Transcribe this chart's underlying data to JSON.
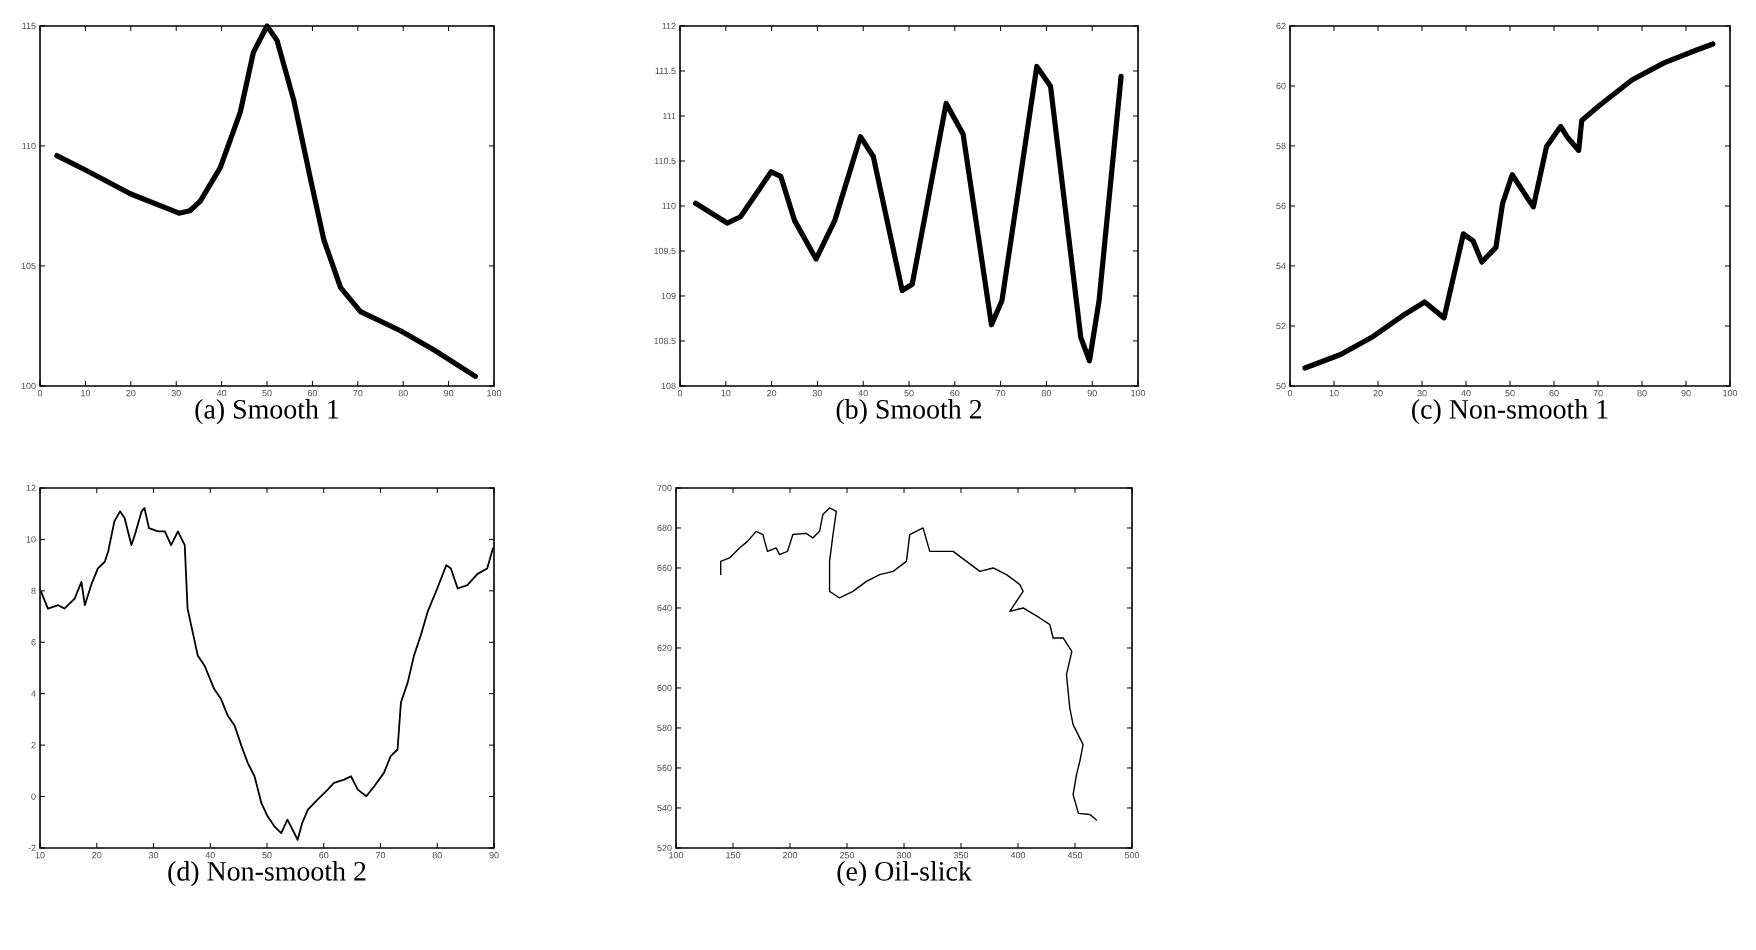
{
  "chart_data": [
    {
      "type": "line",
      "title": "(a) Smooth 1",
      "xlim": [
        0,
        100
      ],
      "ylim": [
        100,
        115
      ],
      "xticks": [
        0,
        10,
        20,
        30,
        40,
        50,
        60,
        70,
        80,
        90,
        100
      ],
      "yticks": [
        100,
        105,
        110,
        115
      ],
      "series": [
        {
          "color": "#000000",
          "x": [
            3.7,
            10,
            20,
            28,
            30.6,
            33,
            35.3,
            39.7,
            44.1,
            47,
            50,
            52.2,
            55.9,
            59.6,
            62.5,
            66.2,
            70.6,
            79.4,
            86.8,
            95.9
          ],
          "values": [
            109.6,
            109.0,
            108.0,
            107.4,
            107.2,
            107.3,
            107.7,
            109.1,
            111.4,
            113.9,
            115,
            114.4,
            111.9,
            108.6,
            106.1,
            104.1,
            103.1,
            102.3,
            101.5,
            100.4
          ]
        }
      ]
    },
    {
      "type": "line",
      "title": "(b) Smooth 2",
      "xlim": [
        0,
        100
      ],
      "ylim": [
        108,
        112
      ],
      "xticks": [
        0,
        10,
        20,
        30,
        40,
        50,
        60,
        70,
        80,
        90,
        100
      ],
      "yticks": [
        108,
        108.5,
        109,
        109.5,
        110,
        110.5,
        111,
        111.5,
        112
      ],
      "series": [
        {
          "color": "#000000",
          "x": [
            3.4,
            10.3,
            13.2,
            19.9,
            22,
            25,
            29.7,
            33.8,
            39.4,
            42.2,
            48.5,
            50.7,
            58.1,
            61.8,
            68,
            70.3,
            77.9,
            80.9,
            87.5,
            89.4,
            91.5,
            96.3
          ],
          "values": [
            110.03,
            109.81,
            109.88,
            110.38,
            110.33,
            109.84,
            109.41,
            109.84,
            110.77,
            110.55,
            109.06,
            109.13,
            111.14,
            110.8,
            108.68,
            108.95,
            111.55,
            111.33,
            108.54,
            108.28,
            108.95,
            111.44
          ]
        }
      ]
    },
    {
      "type": "line",
      "title": "(c) Non-smooth 1",
      "xlim": [
        0,
        100
      ],
      "ylim": [
        50,
        62
      ],
      "xticks": [
        0,
        10,
        20,
        30,
        40,
        50,
        60,
        70,
        80,
        90,
        100
      ],
      "yticks": [
        50,
        52,
        54,
        56,
        58,
        60,
        62
      ],
      "series": [
        {
          "color": "#000000",
          "x": [
            3.4,
            11.5,
            18.9,
            26.2,
            30.6,
            35,
            39.4,
            41.6,
            43.6,
            46.8,
            48.3,
            50.5,
            55.3,
            58.3,
            61.5,
            63,
            65.6,
            66.3,
            70.3,
            77.7,
            85,
            92.4,
            96.1
          ],
          "values": [
            50.6,
            51.05,
            51.65,
            52.4,
            52.8,
            52.27,
            55.07,
            54.84,
            54.13,
            54.62,
            56.08,
            57.04,
            55.97,
            57.98,
            58.65,
            58.3,
            57.85,
            58.85,
            59.35,
            60.2,
            60.77,
            61.2,
            61.4
          ]
        }
      ]
    },
    {
      "type": "line",
      "title": "(d) Non-smooth 2",
      "xlim": [
        10,
        90
      ],
      "ylim": [
        -2,
        12
      ],
      "xticks": [
        10,
        20,
        30,
        40,
        50,
        60,
        70,
        80,
        90
      ],
      "yticks": [
        -2,
        0,
        2,
        4,
        6,
        8,
        10,
        12
      ],
      "series": [
        {
          "color": "#000000",
          "x": [
            10.2,
            11.4,
            13.2,
            14.3,
            16.1,
            17.3,
            17.9,
            19,
            20.2,
            21.4,
            22,
            23.1,
            24.1,
            24.9,
            26.1,
            26.7,
            27.9,
            28.4,
            29.2,
            30.8,
            32,
            33.1,
            34.3,
            35.5,
            36,
            37.8,
            39,
            40.7,
            41.9,
            43.1,
            44.3,
            45.5,
            46.6,
            47.8,
            49,
            50.1,
            51.3,
            52.5,
            53.6,
            55.4,
            56.2,
            57.2,
            58.9,
            60.7,
            61.8,
            63.6,
            64.8,
            66,
            67.5,
            68.9,
            70.6,
            71.8,
            73,
            73.6,
            74.8,
            75.9,
            77.1,
            78.3,
            80,
            81.6,
            82.4,
            83.6,
            85.3,
            87.1,
            88.8,
            89.8
          ],
          "values": [
            7.96,
            7.31,
            7.44,
            7.31,
            7.7,
            8.35,
            7.44,
            8.22,
            8.87,
            9.13,
            9.52,
            10.7,
            11.09,
            10.83,
            9.78,
            10.17,
            11.09,
            11.22,
            10.44,
            10.31,
            10.31,
            9.78,
            10.31,
            9.78,
            7.31,
            5.48,
            5.09,
            4.18,
            3.79,
            3.14,
            2.75,
            1.96,
            1.31,
            0.79,
            -0.25,
            -0.77,
            -1.16,
            -1.42,
            -0.9,
            -1.68,
            -1.03,
            -0.51,
            -0.12,
            0.27,
            0.53,
            0.66,
            0.79,
            0.27,
            0.01,
            0.4,
            0.92,
            1.57,
            1.83,
            3.66,
            4.44,
            5.48,
            6.27,
            7.18,
            8.09,
            9,
            8.87,
            8.09,
            8.22,
            8.66,
            8.87,
            9.65
          ]
        }
      ]
    },
    {
      "type": "line",
      "title": "(e) Oil-slick",
      "xlim": [
        100,
        500
      ],
      "ylim": [
        520,
        700
      ],
      "xticks": [
        100,
        150,
        200,
        250,
        300,
        350,
        400,
        450,
        500
      ],
      "yticks": [
        520,
        540,
        560,
        580,
        600,
        620,
        640,
        660,
        680,
        700
      ],
      "series": [
        {
          "color": "#000000",
          "x": [
            139.2,
            139.2,
            146.9,
            155.7,
            162.7,
            170.3,
            176.2,
            180.2,
            187.9,
            190.8,
            197.8,
            202.5,
            214.2,
            220,
            225.9,
            228.8,
            234.7,
            240.6,
            237.7,
            234.7,
            234.7,
            243.5,
            255.2,
            267,
            278.7,
            290.4,
            302.1,
            305,
            316.7,
            322.6,
            334.3,
            343.1,
            354.8,
            366.5,
            378.2,
            389.9,
            401.6,
            404.5,
            392.8,
            404.5,
            419.1,
            427.9,
            430.8,
            439.6,
            447.2,
            442.5,
            445.4,
            448.3,
            457.1,
            454.2,
            451.3,
            448.3,
            453,
            463,
            468.8
          ],
          "values": [
            656.7,
            663.3,
            665,
            670,
            673.3,
            678.3,
            676.7,
            668.3,
            670,
            666.7,
            668.3,
            676.7,
            677.3,
            675,
            678.3,
            686.7,
            690,
            688.3,
            676.7,
            663.3,
            648.3,
            645,
            648.3,
            653.3,
            656.7,
            658.3,
            663.3,
            676.7,
            680,
            668.3,
            668.3,
            668.3,
            663.3,
            658.3,
            660,
            656.7,
            651.7,
            648.3,
            638.3,
            640,
            635,
            631.7,
            625,
            625,
            618.3,
            606.7,
            590,
            581.7,
            571.7,
            563.3,
            556.7,
            546.7,
            537.3,
            536.7,
            534
          ]
        }
      ]
    }
  ]
}
